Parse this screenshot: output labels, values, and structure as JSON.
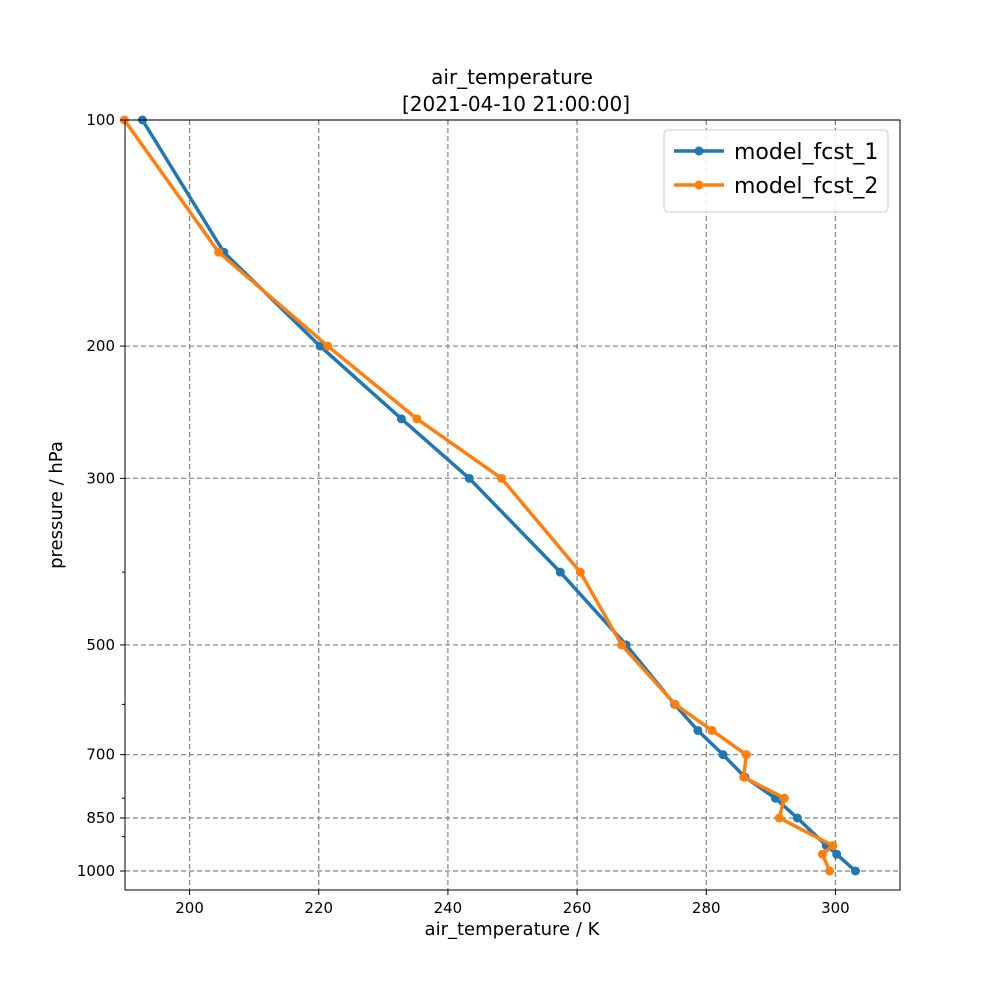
{
  "chart_data": {
    "type": "line",
    "title": "air_temperature",
    "subtitle": "[2021-04-10 21:00:00]",
    "xlabel": "air_temperature / K",
    "ylabel": "pressure / hPa",
    "xlim": [
      190,
      310
    ],
    "ylim": [
      1060,
      100
    ],
    "yscale": "log",
    "x_ticks": [
      200,
      220,
      240,
      260,
      280,
      300
    ],
    "x_tick_labels": [
      "200",
      "220",
      "240",
      "260",
      "280",
      "300"
    ],
    "y_ticks": [
      100,
      200,
      300,
      500,
      700,
      850,
      1000
    ],
    "y_tick_labels": [
      "100",
      "200",
      "300",
      "500",
      "700",
      "850",
      "1000"
    ],
    "y_minor_ticks": [
      400,
      600,
      800,
      900
    ],
    "grid": true,
    "legend_position": "top-right",
    "series": [
      {
        "name": "model_fcst_1",
        "color": "#1f77b4",
        "points": [
          {
            "x": 192.7,
            "y": 100
          },
          {
            "x": 205.3,
            "y": 150
          },
          {
            "x": 220.2,
            "y": 200
          },
          {
            "x": 232.8,
            "y": 250
          },
          {
            "x": 243.3,
            "y": 300
          },
          {
            "x": 257.4,
            "y": 400
          },
          {
            "x": 267.6,
            "y": 500
          },
          {
            "x": 275.1,
            "y": 600
          },
          {
            "x": 278.7,
            "y": 650
          },
          {
            "x": 282.6,
            "y": 700
          },
          {
            "x": 286.0,
            "y": 750
          },
          {
            "x": 290.7,
            "y": 800
          },
          {
            "x": 294.1,
            "y": 850
          },
          {
            "x": 298.6,
            "y": 925
          },
          {
            "x": 300.2,
            "y": 950
          },
          {
            "x": 303.1,
            "y": 1000
          }
        ]
      },
      {
        "name": "model_fcst_2",
        "color": "#ff7f0e",
        "points": [
          {
            "x": 189.9,
            "y": 100
          },
          {
            "x": 204.5,
            "y": 150
          },
          {
            "x": 221.4,
            "y": 200
          },
          {
            "x": 235.2,
            "y": 250
          },
          {
            "x": 248.3,
            "y": 300
          },
          {
            "x": 260.5,
            "y": 400
          },
          {
            "x": 266.9,
            "y": 500
          },
          {
            "x": 275.2,
            "y": 600
          },
          {
            "x": 280.9,
            "y": 650
          },
          {
            "x": 286.2,
            "y": 700
          },
          {
            "x": 285.8,
            "y": 750
          },
          {
            "x": 292.1,
            "y": 800
          },
          {
            "x": 291.3,
            "y": 850
          },
          {
            "x": 299.6,
            "y": 925
          },
          {
            "x": 298.0,
            "y": 950
          },
          {
            "x": 299.1,
            "y": 1000
          }
        ]
      }
    ]
  }
}
